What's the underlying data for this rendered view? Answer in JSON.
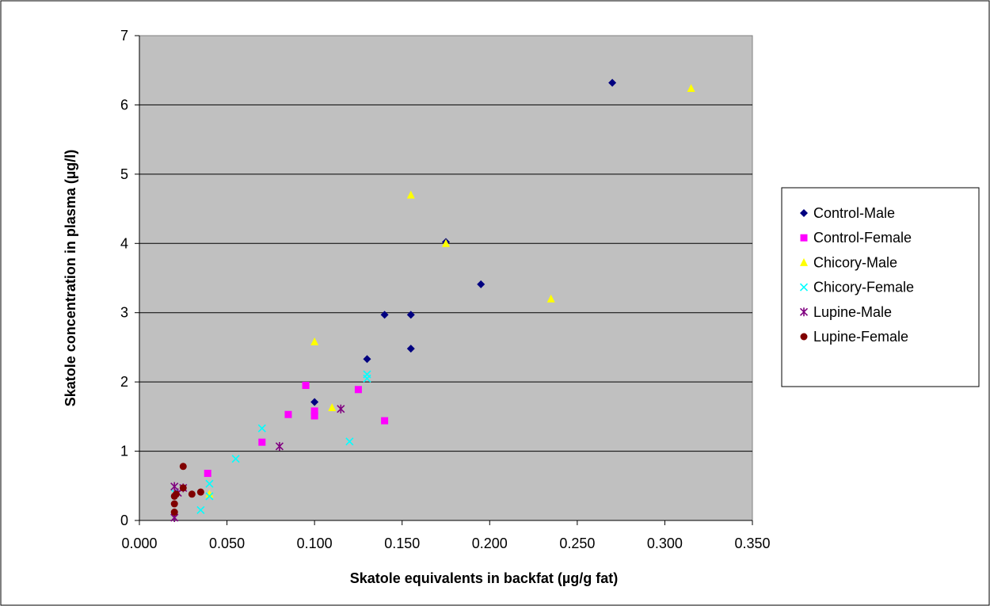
{
  "chart_data": {
    "type": "scatter",
    "title": "",
    "xlabel": "Skatole equivalents in backfat (µg/g fat)",
    "ylabel": "Skatole concentration in plasma (µg/l)",
    "xlim": [
      0,
      0.35
    ],
    "ylim": [
      0,
      7
    ],
    "xticks": [
      "0.000",
      "0.050",
      "0.100",
      "0.150",
      "0.200",
      "0.250",
      "0.300",
      "0.350"
    ],
    "yticks": [
      "0",
      "1",
      "2",
      "3",
      "4",
      "5",
      "6",
      "7"
    ],
    "grid": "horizontal",
    "plot_background": "#c0c0c0",
    "legend_position": "right",
    "series": [
      {
        "name": "Control-Male",
        "marker": "diamond",
        "color": "#000080",
        "points": [
          [
            0.27,
            6.32
          ],
          [
            0.175,
            4.02
          ],
          [
            0.195,
            3.41
          ],
          [
            0.14,
            2.97
          ],
          [
            0.155,
            2.97
          ],
          [
            0.155,
            2.48
          ],
          [
            0.13,
            2.33
          ],
          [
            0.1,
            1.71
          ]
        ]
      },
      {
        "name": "Control-Female",
        "marker": "square",
        "color": "#ff00ff",
        "points": [
          [
            0.095,
            1.95
          ],
          [
            0.125,
            1.89
          ],
          [
            0.085,
            1.53
          ],
          [
            0.1,
            1.58
          ],
          [
            0.1,
            1.51
          ],
          [
            0.14,
            1.44
          ],
          [
            0.07,
            1.13
          ],
          [
            0.039,
            0.68
          ]
        ]
      },
      {
        "name": "Chicory-Male",
        "marker": "triangle",
        "color": "#ffff00",
        "points": [
          [
            0.315,
            6.24
          ],
          [
            0.155,
            4.7
          ],
          [
            0.175,
            4.0
          ],
          [
            0.235,
            3.2
          ],
          [
            0.1,
            2.58
          ],
          [
            0.11,
            1.63
          ],
          [
            0.04,
            0.38
          ]
        ]
      },
      {
        "name": "Chicory-Female",
        "marker": "x",
        "color": "#00ffff",
        "points": [
          [
            0.13,
            2.11
          ],
          [
            0.13,
            2.05
          ],
          [
            0.07,
            1.33
          ],
          [
            0.12,
            1.14
          ],
          [
            0.055,
            0.89
          ],
          [
            0.04,
            0.53
          ],
          [
            0.04,
            0.35
          ],
          [
            0.035,
            0.15
          ],
          [
            0.02,
            0.4
          ]
        ]
      },
      {
        "name": "Lupine-Male",
        "marker": "star",
        "color": "#800080",
        "points": [
          [
            0.115,
            1.61
          ],
          [
            0.08,
            1.07
          ],
          [
            0.02,
            0.49
          ],
          [
            0.025,
            0.47
          ],
          [
            0.022,
            0.4
          ],
          [
            0.02,
            0.04
          ]
        ]
      },
      {
        "name": "Lupine-Female",
        "marker": "circle",
        "color": "#800000",
        "points": [
          [
            0.025,
            0.78
          ],
          [
            0.025,
            0.47
          ],
          [
            0.035,
            0.41
          ],
          [
            0.03,
            0.38
          ],
          [
            0.021,
            0.38
          ],
          [
            0.02,
            0.35
          ],
          [
            0.02,
            0.24
          ],
          [
            0.02,
            0.12
          ]
        ]
      }
    ]
  }
}
